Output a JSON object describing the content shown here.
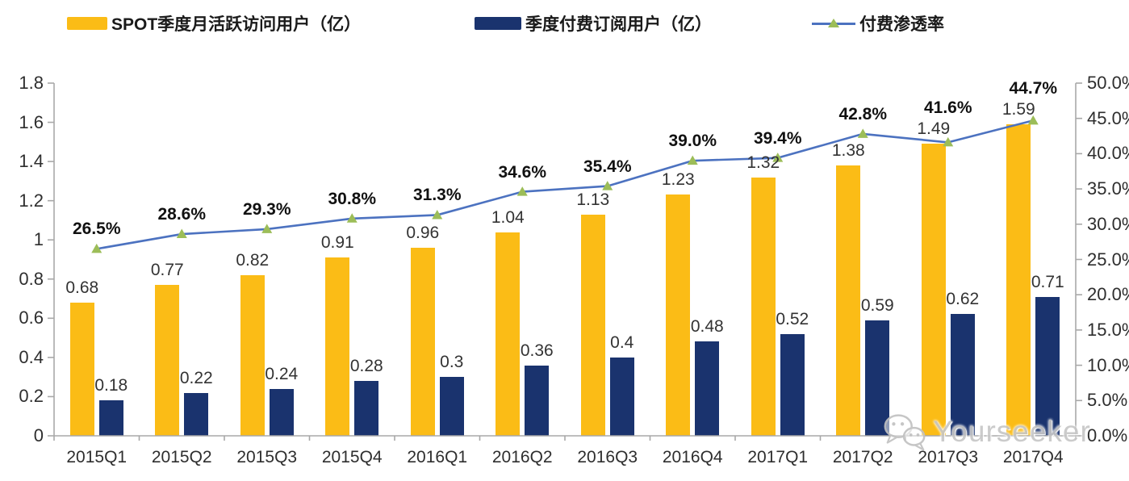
{
  "legend": {
    "mau": "SPOT季度月活跃访问用户（亿）",
    "paid": "季度付费订阅用户（亿）",
    "penetration": "付费渗透率"
  },
  "watermark": {
    "text": "Yourseeker",
    "icon": "wechat-icon"
  },
  "colors": {
    "mau_bar": "#FBBC16",
    "paid_bar": "#1A336E",
    "line": "#4C72C0",
    "marker": "#9CBD58",
    "axis": "#A8A8A8",
    "label_text": "#333333",
    "watermark": "#C7C7C7"
  },
  "chart_data": {
    "type": "bar",
    "subtype": "grouped-bars-with-line",
    "categories": [
      "2015Q1",
      "2015Q2",
      "2015Q3",
      "2015Q4",
      "2016Q1",
      "2016Q2",
      "2016Q3",
      "2016Q4",
      "2017Q1",
      "2017Q2",
      "2017Q3",
      "2017Q4"
    ],
    "series": [
      {
        "name": "SPOT季度月活跃访问用户（亿）",
        "type": "bar",
        "axis": "left",
        "values": [
          0.68,
          0.77,
          0.82,
          0.91,
          0.96,
          1.04,
          1.13,
          1.23,
          1.32,
          1.38,
          1.49,
          1.59
        ],
        "labels": [
          "0.68",
          "0.77",
          "0.82",
          "0.91",
          "0.96",
          "1.04",
          "1.13",
          "1.23",
          "1.32",
          "1.38",
          "1.49",
          "1.59"
        ]
      },
      {
        "name": "季度付费订阅用户（亿）",
        "type": "bar",
        "axis": "left",
        "values": [
          0.18,
          0.22,
          0.24,
          0.28,
          0.3,
          0.36,
          0.4,
          0.48,
          0.52,
          0.59,
          0.62,
          0.71
        ],
        "labels": [
          "0.18",
          "0.22",
          "0.24",
          "0.28",
          "0.3",
          "0.36",
          "0.4",
          "0.48",
          "0.52",
          "0.59",
          "0.62",
          "0.71"
        ]
      },
      {
        "name": "付费渗透率",
        "type": "line",
        "axis": "right",
        "values": [
          26.5,
          28.6,
          29.3,
          30.8,
          31.3,
          34.6,
          35.4,
          39.0,
          39.4,
          42.8,
          41.6,
          44.7
        ],
        "labels": [
          "26.5%",
          "28.6%",
          "29.3%",
          "30.8%",
          "31.3%",
          "34.6%",
          "35.4%",
          "39.0%",
          "39.4%",
          "42.8%",
          "41.6%",
          "44.7%"
        ]
      }
    ],
    "left_axis": {
      "max": 1.8,
      "values": [
        0,
        0.2,
        0.4,
        0.6,
        0.8,
        1,
        1.2,
        1.4,
        1.6,
        1.8
      ],
      "labels": [
        "0",
        "0.2",
        "0.4",
        "0.6",
        "0.8",
        "1",
        "1.2",
        "1.4",
        "1.6",
        "1.8"
      ]
    },
    "right_axis": {
      "max": 50,
      "values": [
        0,
        5,
        10,
        15,
        20,
        25,
        30,
        35,
        40,
        45,
        50
      ],
      "labels": [
        "0.0%",
        "5.0%",
        "10.0%",
        "15.0%",
        "20.0%",
        "25.0%",
        "30.0%",
        "35.0%",
        "40.0%",
        "45.0%",
        "50.0%"
      ]
    },
    "grid": false,
    "legend_position": "top"
  }
}
